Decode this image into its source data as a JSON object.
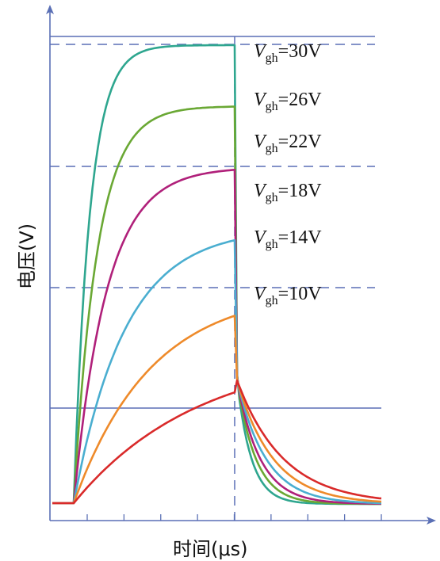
{
  "chart_data": {
    "type": "line",
    "xlabel": "时间(μs)",
    "ylabel": "电压(V)",
    "grid": false,
    "x_ticks": 9,
    "series": [
      {
        "name": "Vgh=30V",
        "vgh_sub": "gh",
        "vgh_rest": "=30V",
        "color": "#2ea68f",
        "plateau": 30,
        "rise_tau": 0.22
      },
      {
        "name": "Vgh=26V",
        "vgh_sub": "gh",
        "vgh_rest": "=26V",
        "color": "#6aa834",
        "plateau": 26,
        "rise_tau": 0.32
      },
      {
        "name": "Vgh=22V",
        "vgh_sub": "gh",
        "vgh_rest": "=22V",
        "color": "#b0207a",
        "plateau": 22,
        "rise_tau": 0.45
      },
      {
        "name": "Vgh=18V",
        "vgh_sub": "gh",
        "vgh_rest": "=18V",
        "color": "#4aaed0",
        "plateau": 18,
        "rise_tau": 0.7
      },
      {
        "name": "Vgh=14V",
        "vgh_sub": "gh",
        "vgh_rest": "=14V",
        "color": "#ee8a2a",
        "plateau": 14,
        "rise_tau": 1.05
      },
      {
        "name": "Vgh=10V",
        "vgh_sub": "gh",
        "vgh_rest": "=10V",
        "color": "#d92a2a",
        "plateau": 10,
        "rise_tau": 1.7
      }
    ]
  }
}
